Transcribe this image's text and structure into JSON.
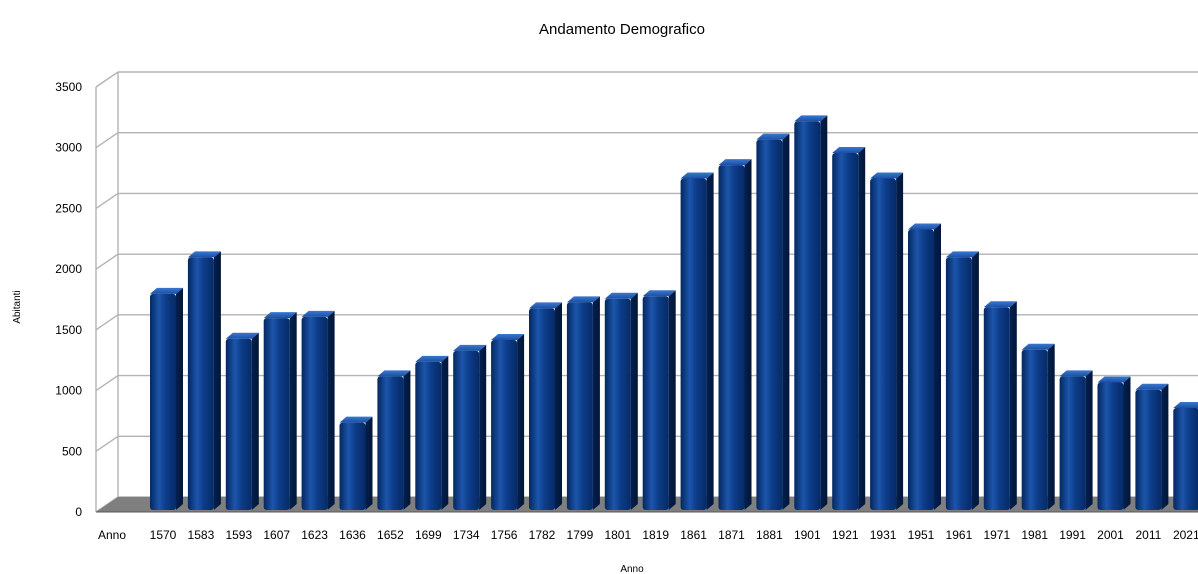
{
  "chart_data": {
    "type": "bar",
    "title": "Andamento Demografico",
    "xlabel": "Anno",
    "ylabel": "Abitanti",
    "x_leading_label": "Anno",
    "categories": [
      "1570",
      "1583",
      "1593",
      "1607",
      "1623",
      "1636",
      "1652",
      "1699",
      "1734",
      "1756",
      "1782",
      "1799",
      "1801",
      "1819",
      "1861",
      "1871",
      "1881",
      "1901",
      "1921",
      "1931",
      "1951",
      "1961",
      "1971",
      "1981",
      "1991",
      "2001",
      "2011",
      "2021"
    ],
    "values": [
      1780,
      2080,
      1410,
      1580,
      1590,
      720,
      1100,
      1220,
      1310,
      1400,
      1660,
      1710,
      1740,
      1760,
      2730,
      2840,
      3050,
      3200,
      2940,
      2730,
      2310,
      2080,
      1670,
      1320,
      1100,
      1050,
      990,
      840
    ],
    "ylim": [
      0,
      3500
    ],
    "yticks": [
      0,
      500,
      1000,
      1500,
      2000,
      2500,
      3000,
      3500
    ],
    "grid": true,
    "legend": "none",
    "colors": {
      "bar": "#0a3a86",
      "bar_light": "#2e6cc4",
      "bar_dark": "#031a45",
      "grid": "#b3b3b3",
      "floor": "#7f7f7f"
    }
  }
}
